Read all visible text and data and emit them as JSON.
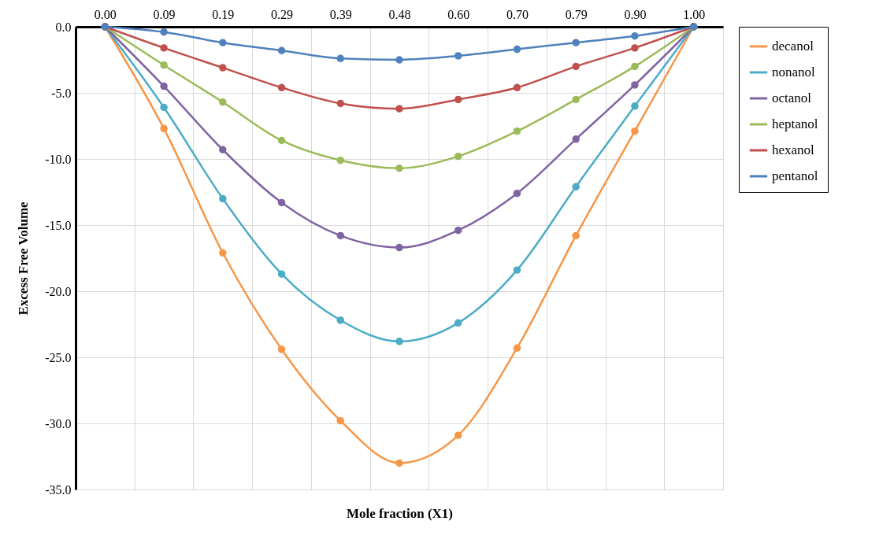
{
  "chart_data": {
    "type": "line",
    "xlabel": "Mole fraction (X1)",
    "ylabel": "Excess Free Volume",
    "categories": [
      "0.00",
      "0.09",
      "0.19",
      "0.29",
      "0.39",
      "0.48",
      "0.60",
      "0.70",
      "0.79",
      "0.90",
      "1.00"
    ],
    "series": [
      {
        "name": "decanol",
        "color": "#f79646",
        "values": [
          0,
          -7.7,
          -17.1,
          -24.4,
          -29.8,
          -33.0,
          -30.9,
          -24.3,
          -15.8,
          -7.9,
          0
        ]
      },
      {
        "name": "nonanol",
        "color": "#4bacc6",
        "values": [
          0,
          -6.1,
          -13.0,
          -18.7,
          -22.2,
          -23.8,
          -22.4,
          -18.4,
          -12.1,
          -6.0,
          0
        ]
      },
      {
        "name": "octanol",
        "color": "#8064a2",
        "values": [
          0,
          -4.5,
          -9.3,
          -13.3,
          -15.8,
          -16.7,
          -15.4,
          -12.6,
          -8.5,
          -4.4,
          0
        ]
      },
      {
        "name": "heptanol",
        "color": "#9bbb59",
        "values": [
          0,
          -2.9,
          -5.7,
          -8.6,
          -10.1,
          -10.7,
          -9.8,
          -7.9,
          -5.5,
          -3.0,
          0
        ]
      },
      {
        "name": "hexanol",
        "color": "#c0504d",
        "values": [
          0,
          -1.6,
          -3.1,
          -4.6,
          -5.8,
          -6.2,
          -5.5,
          -4.6,
          -3.0,
          -1.6,
          0
        ]
      },
      {
        "name": "pentanol",
        "color": "#4f81bd",
        "values": [
          0,
          -0.4,
          -1.2,
          -1.8,
          -2.4,
          -2.5,
          -2.2,
          -1.7,
          -1.2,
          -0.7,
          0
        ]
      }
    ],
    "ylim": [
      -35,
      0
    ],
    "yticks": [
      {
        "value": -35,
        "label": "-35.0"
      },
      {
        "value": -30,
        "label": "-30.0"
      },
      {
        "value": -25,
        "label": "-25.0"
      },
      {
        "value": -20,
        "label": "-20.0"
      },
      {
        "value": -15,
        "label": "-15.0"
      },
      {
        "value": -10,
        "label": "-10.0"
      },
      {
        "value": -5,
        "label": "-5.0"
      },
      {
        "value": 0,
        "label": "0.0"
      }
    ],
    "grid": true,
    "legend": "right",
    "marker": "circle",
    "line_style": "solid"
  }
}
